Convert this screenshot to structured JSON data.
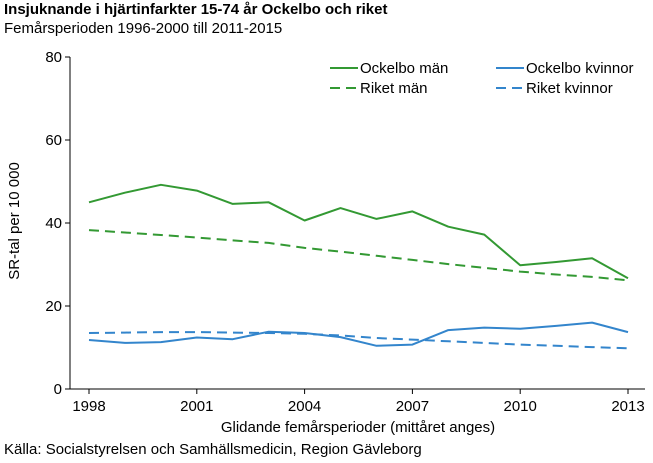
{
  "header": {
    "title": "Insjuknande i hjärtinfarkter 15-74 år Ockelbo och riket",
    "subtitle": "Femårsperioden 1996-2000 till 2011-2015"
  },
  "footer": {
    "source": "Källa: Socialstyrelsen och Samhällsmedicin, Region Gävleborg"
  },
  "chart_data": {
    "type": "line",
    "xlabel": "Glidande femårsperioder (mittåret anges)",
    "ylabel": "SR-tal per 10 000",
    "xlim": [
      1998,
      2013
    ],
    "ylim": [
      0,
      80
    ],
    "xticks": [
      1998,
      2001,
      2004,
      2007,
      2010,
      2013
    ],
    "yticks": [
      0,
      20,
      40,
      60,
      80
    ],
    "grid": false,
    "legend_position": "top-right",
    "x": [
      1998,
      1999,
      2000,
      2001,
      2002,
      2003,
      2004,
      2005,
      2006,
      2007,
      2008,
      2009,
      2010,
      2011,
      2012,
      2013
    ],
    "series": [
      {
        "name": "Ockelbo män",
        "color": "#339933",
        "dash": "solid",
        "values": [
          45.0,
          47.3,
          49.2,
          47.8,
          44.6,
          45.0,
          40.6,
          43.6,
          41.0,
          42.8,
          39.1,
          37.2,
          29.8,
          30.6,
          31.5,
          26.7
        ]
      },
      {
        "name": "Riket män",
        "color": "#339933",
        "dash": "dashed",
        "values": [
          38.3,
          37.7,
          37.1,
          36.5,
          35.8,
          35.2,
          34.0,
          33.1,
          32.1,
          31.1,
          30.1,
          29.2,
          28.3,
          27.6,
          27.0,
          26.2
        ]
      },
      {
        "name": "Ockelbo kvinnor",
        "color": "#3385cc",
        "dash": "solid",
        "values": [
          11.8,
          11.1,
          11.3,
          12.4,
          12.0,
          13.8,
          13.5,
          12.5,
          10.4,
          10.7,
          14.2,
          14.8,
          14.5,
          15.2,
          16.0,
          13.7
        ]
      },
      {
        "name": "Riket kvinnor",
        "color": "#3385cc",
        "dash": "dashed",
        "values": [
          13.5,
          13.6,
          13.7,
          13.7,
          13.6,
          13.5,
          13.3,
          12.9,
          12.3,
          11.9,
          11.5,
          11.1,
          10.7,
          10.4,
          10.1,
          9.8
        ]
      }
    ]
  }
}
